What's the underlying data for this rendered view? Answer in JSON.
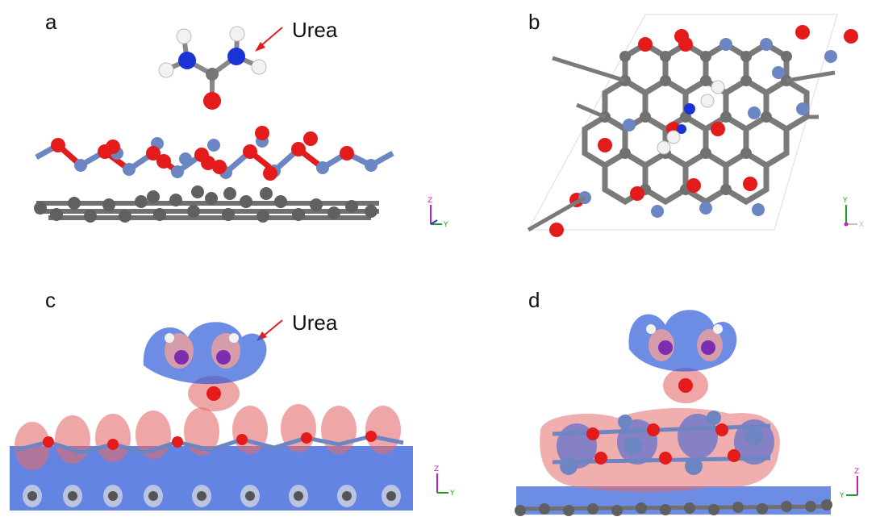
{
  "panels": {
    "a": {
      "letter": "a",
      "callout": "Urea",
      "axes": {
        "vertical": "Z",
        "horizontal": "Y"
      }
    },
    "b": {
      "letter": "b",
      "axes": {
        "vertical": "Y",
        "horizontal": "X"
      }
    },
    "c": {
      "letter": "c",
      "callout": "Urea",
      "axes": {
        "vertical": "Z",
        "horizontal": "Y"
      }
    },
    "d": {
      "letter": "d",
      "axes": {
        "vertical": "Z",
        "horizontal": "Y"
      }
    }
  },
  "colors": {
    "oxygen": "#e31b1b",
    "nitrogen_blue": "#1a33d6",
    "boron_lightblue": "#6b86c2",
    "carbon": "#6d6d6d",
    "hydrogen": "#f4f4f4",
    "charge_depletion": "#2f5bd9",
    "charge_accumulation": "#e46b6b",
    "callout_arrow": "#e21d1d"
  }
}
